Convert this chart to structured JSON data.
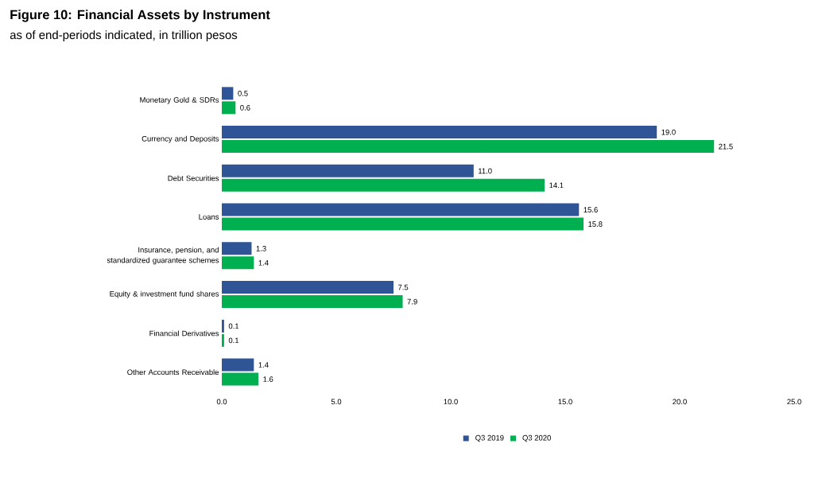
{
  "chart_data": {
    "type": "bar",
    "orientation": "horizontal",
    "title": "Figure 10: Financial Assets by Instrument",
    "subtitle": "as of end-periods indicated, in trillion pesos",
    "categories": [
      "Monetary Gold & SDRs",
      "Currency and Deposits",
      "Debt Securities",
      "Loans",
      "Insurance, pension, and standardized guarantee schemes",
      "Equity & investment fund shares",
      "Financial Derivatives",
      "Other Accounts Receivable"
    ],
    "series": [
      {
        "name": "Q3 2019",
        "color": "#2f5597",
        "values": [
          0.5,
          19.0,
          11.0,
          15.6,
          1.3,
          7.5,
          0.1,
          1.4
        ],
        "value_labels": [
          "0.5",
          "19.0",
          "11.0",
          "15.6",
          "1.3",
          "7.5",
          "0.1",
          "1.4"
        ]
      },
      {
        "name": "Q3 2020",
        "color": "#00b050",
        "values": [
          0.6,
          21.5,
          14.1,
          15.8,
          1.4,
          7.9,
          0.1,
          1.6
        ],
        "value_labels": [
          "0.6",
          "21.5",
          "14.1",
          "15.8",
          "1.4",
          "7.9",
          "0.1",
          "1.6"
        ]
      }
    ],
    "xlim": [
      0,
      25
    ],
    "xticks": [
      {
        "value": 0,
        "label": "0.0"
      },
      {
        "value": 5,
        "label": "5.0"
      },
      {
        "value": 10,
        "label": "10.0"
      },
      {
        "value": 15,
        "label": "15.0"
      },
      {
        "value": 20,
        "label": "20.0"
      },
      {
        "value": 25,
        "label": "25.0"
      }
    ],
    "legend": "bottom"
  }
}
